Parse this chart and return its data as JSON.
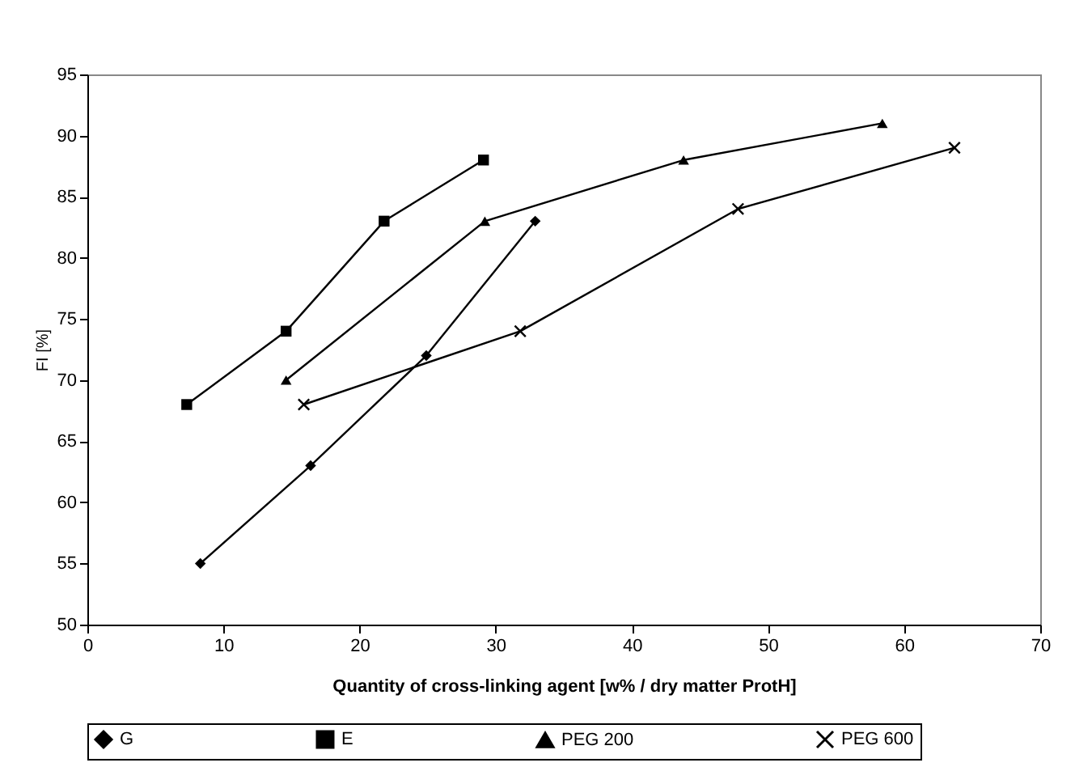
{
  "chart_data": {
    "type": "line",
    "xlabel": "Quantity of cross-linking agent [w% / dry matter ProtH]",
    "ylabel": "FI [%]",
    "xlim": [
      0,
      70
    ],
    "xticks": [
      0,
      10,
      20,
      30,
      40,
      50,
      60,
      70
    ],
    "ylim": [
      50,
      95
    ],
    "yticks": [
      50,
      55,
      60,
      65,
      70,
      75,
      80,
      85,
      90,
      95
    ],
    "grid": false,
    "legend": "bottom",
    "series": [
      {
        "name": "G",
        "color": "#000000",
        "marker": "diamond",
        "x": [
          8.3,
          16.4,
          24.9,
          32.9
        ],
        "values": [
          55,
          63,
          72,
          83
        ]
      },
      {
        "name": "E",
        "color": "#000000",
        "marker": "square",
        "x": [
          7.3,
          14.6,
          21.8,
          29.1
        ],
        "values": [
          68,
          74,
          83,
          88
        ]
      },
      {
        "name": "PEG 200",
        "color": "#000000",
        "marker": "triangle",
        "x": [
          14.6,
          29.2,
          43.8,
          58.4
        ],
        "values": [
          70,
          83,
          88,
          91
        ]
      },
      {
        "name": "PEG 600",
        "color": "#000000",
        "marker": "cross",
        "x": [
          15.9,
          31.8,
          47.8,
          63.7
        ],
        "values": [
          68,
          74,
          84,
          89
        ]
      }
    ]
  }
}
